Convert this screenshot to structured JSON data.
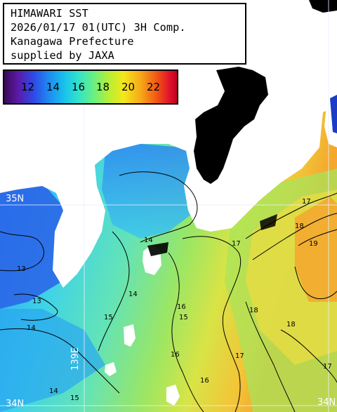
{
  "header": {
    "line1": "HIMAWARI SST",
    "line2": "2026/01/17 01(UTC) 3H Comp.",
    "line3": "Kanagawa Prefecture",
    "line4": "supplied by JAXA"
  },
  "legend": {
    "ticks": [
      "12",
      "14",
      "16",
      "18",
      "20",
      "22"
    ]
  },
  "coords": {
    "lat_top": "35N",
    "lat_bottom": "34N",
    "lat_right": "34N",
    "lon_label": "139E"
  },
  "isotherm_labels": [
    "13",
    "13",
    "14",
    "14",
    "14",
    "14",
    "15",
    "15",
    "15",
    "16",
    "16",
    "16",
    "17",
    "17",
    "17",
    "18",
    "18",
    "18",
    "19",
    "17"
  ],
  "colors": {
    "land": "#ffffff",
    "cloud_mask": "#000000",
    "sea_cold": "#2a6df0",
    "sea_mid": "#45d6e6",
    "sea_warm": "#8ee36a",
    "sea_warmer": "#f1d23c",
    "sea_hot": "#f39a2c"
  }
}
